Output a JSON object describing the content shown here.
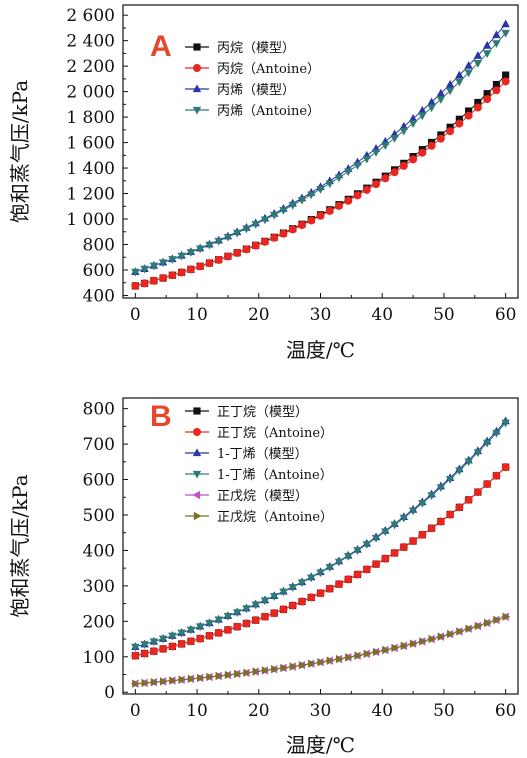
{
  "chart_data": [
    {
      "type": "line",
      "panel_label": "A",
      "xlabel": "温度/℃",
      "ylabel": "饱和蒸气压/kPa",
      "xlim": [
        -2,
        62
      ],
      "ylim": [
        380,
        2680
      ],
      "xticks": [
        0,
        10,
        20,
        30,
        40,
        50,
        60
      ],
      "xtick_labels": [
        "0",
        "10",
        "20",
        "30",
        "40",
        "50",
        "60"
      ],
      "yticks": [
        400,
        600,
        800,
        1000,
        1200,
        1400,
        1600,
        1800,
        2000,
        2200,
        2400,
        2600
      ],
      "ytick_labels": [
        "400",
        "600",
        "800",
        "1 000",
        "1 200",
        "1 400",
        "1 600",
        "1 800",
        "2 000",
        "2 200",
        "2 400",
        "2 600"
      ],
      "legend_position": "top-center",
      "series": [
        {
          "name": "丙烷（模型）",
          "color": "#111111",
          "marker": "square",
          "x0": 0,
          "x1": 60,
          "step": 1.5,
          "y_at_x0": 475,
          "y_at_x1": 2130,
          "curvature": 1.35
        },
        {
          "name": "丙烷（Antoine）",
          "color": "#e8261f",
          "marker": "circle",
          "x0": 0,
          "x1": 60,
          "step": 1.5,
          "y_at_x0": 475,
          "y_at_x1": 2080,
          "curvature": 1.3
        },
        {
          "name": "丙烯（模型）",
          "color": "#2a35a8",
          "marker": "triangle-up",
          "x0": 0,
          "x1": 60,
          "step": 1.5,
          "y_at_x0": 585,
          "y_at_x1": 2530,
          "curvature": 1.3
        },
        {
          "name": "丙烯（Antoine）",
          "color": "#2e7b74",
          "marker": "triangle-down",
          "x0": 0,
          "x1": 60,
          "step": 1.5,
          "y_at_x0": 585,
          "y_at_x1": 2460,
          "curvature": 1.27
        }
      ]
    },
    {
      "type": "line",
      "panel_label": "B",
      "xlabel": "温度/℃",
      "ylabel": "饱和蒸气压/kPa",
      "xlim": [
        -2,
        62
      ],
      "ylim": [
        -5,
        830
      ],
      "xticks": [
        0,
        10,
        20,
        30,
        40,
        50,
        60
      ],
      "xtick_labels": [
        "0",
        "10",
        "20",
        "30",
        "40",
        "50",
        "60"
      ],
      "yticks": [
        0,
        100,
        200,
        300,
        400,
        500,
        600,
        700,
        800
      ],
      "ytick_labels": [
        "0",
        "100",
        "200",
        "300",
        "400",
        "500",
        "600",
        "700",
        "800"
      ],
      "legend_position": "top-left",
      "series": [
        {
          "name": "正丁烷（模型）",
          "color": "#111111",
          "marker": "square",
          "x0": 0,
          "x1": 60,
          "step": 1.5,
          "y_at_x0": 103,
          "y_at_x1": 635,
          "curvature": 1.4
        },
        {
          "name": "正丁烷（Antoine）",
          "color": "#e8261f",
          "marker": "circle",
          "x0": 0,
          "x1": 60,
          "step": 1.5,
          "y_at_x0": 103,
          "y_at_x1": 635,
          "curvature": 1.4
        },
        {
          "name": "1-丁烯（模型）",
          "color": "#2a35a8",
          "marker": "triangle-up",
          "x0": 0,
          "x1": 60,
          "step": 1.5,
          "y_at_x0": 128,
          "y_at_x1": 765,
          "curvature": 1.4
        },
        {
          "name": "1-丁烯（Antoine）",
          "color": "#2e7b74",
          "marker": "triangle-down",
          "x0": 0,
          "x1": 60,
          "step": 1.5,
          "y_at_x0": 128,
          "y_at_x1": 760,
          "curvature": 1.4
        },
        {
          "name": "正戊烷（模型）",
          "color": "#c050c8",
          "marker": "triangle-left",
          "x0": 0,
          "x1": 60,
          "step": 1.5,
          "y_at_x0": 24,
          "y_at_x1": 213,
          "curvature": 1.5
        },
        {
          "name": "正戊烷（Antoine）",
          "color": "#7a7028",
          "marker": "triangle-right",
          "x0": 0,
          "x1": 60,
          "step": 1.5,
          "y_at_x0": 24,
          "y_at_x1": 213,
          "curvature": 1.5
        }
      ]
    }
  ]
}
